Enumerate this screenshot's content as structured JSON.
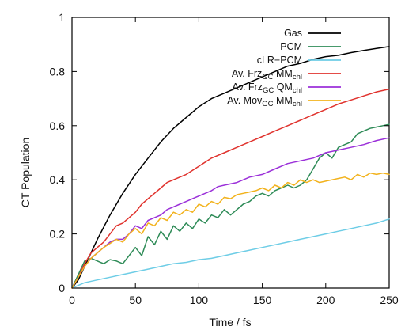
{
  "chart_data": {
    "type": "line",
    "title": "",
    "xlabel": "Time / fs",
    "ylabel": "CT Population",
    "xlim": [
      0,
      250
    ],
    "ylim": [
      0,
      1
    ],
    "xticks": [
      0,
      50,
      100,
      150,
      200,
      250
    ],
    "yticks": [
      0,
      0.2,
      0.4,
      0.6,
      0.8,
      1
    ],
    "ytick_labels": [
      "0",
      "0.2",
      "0.4",
      "0.6",
      "0.8",
      "1"
    ],
    "grid": false,
    "legend_position": "top-right",
    "series": [
      {
        "name": "Gas",
        "name_main": "Gas",
        "name_sub": "",
        "name_after": "",
        "name_sub2": "",
        "color": "#000000",
        "points": [
          [
            0,
            0
          ],
          [
            5,
            0.03
          ],
          [
            10,
            0.08
          ],
          [
            15,
            0.13
          ],
          [
            20,
            0.18
          ],
          [
            30,
            0.27
          ],
          [
            40,
            0.35
          ],
          [
            50,
            0.42
          ],
          [
            60,
            0.48
          ],
          [
            70,
            0.54
          ],
          [
            80,
            0.59
          ],
          [
            90,
            0.63
          ],
          [
            100,
            0.67
          ],
          [
            110,
            0.7
          ],
          [
            120,
            0.72
          ],
          [
            130,
            0.74
          ],
          [
            140,
            0.76
          ],
          [
            150,
            0.78
          ],
          [
            160,
            0.8
          ],
          [
            170,
            0.82
          ],
          [
            180,
            0.83
          ],
          [
            190,
            0.845
          ],
          [
            200,
            0.855
          ],
          [
            210,
            0.86
          ],
          [
            220,
            0.87
          ],
          [
            230,
            0.878
          ],
          [
            240,
            0.885
          ],
          [
            250,
            0.892
          ]
        ]
      },
      {
        "name": "PCM",
        "name_main": "PCM",
        "name_sub": "",
        "name_after": "",
        "name_sub2": "",
        "color": "#2e8b57",
        "points": [
          [
            0,
            0
          ],
          [
            5,
            0.05
          ],
          [
            10,
            0.1
          ],
          [
            15,
            0.11
          ],
          [
            20,
            0.1
          ],
          [
            25,
            0.09
          ],
          [
            30,
            0.105
          ],
          [
            35,
            0.1
          ],
          [
            40,
            0.09
          ],
          [
            45,
            0.12
          ],
          [
            50,
            0.15
          ],
          [
            55,
            0.12
          ],
          [
            60,
            0.19
          ],
          [
            65,
            0.16
          ],
          [
            70,
            0.21
          ],
          [
            75,
            0.18
          ],
          [
            80,
            0.23
          ],
          [
            85,
            0.21
          ],
          [
            90,
            0.24
          ],
          [
            95,
            0.22
          ],
          [
            100,
            0.255
          ],
          [
            105,
            0.24
          ],
          [
            110,
            0.27
          ],
          [
            115,
            0.26
          ],
          [
            120,
            0.29
          ],
          [
            125,
            0.27
          ],
          [
            130,
            0.29
          ],
          [
            135,
            0.31
          ],
          [
            140,
            0.32
          ],
          [
            145,
            0.34
          ],
          [
            150,
            0.35
          ],
          [
            155,
            0.34
          ],
          [
            160,
            0.36
          ],
          [
            165,
            0.37
          ],
          [
            170,
            0.38
          ],
          [
            175,
            0.37
          ],
          [
            180,
            0.38
          ],
          [
            185,
            0.4
          ],
          [
            190,
            0.44
          ],
          [
            195,
            0.48
          ],
          [
            200,
            0.5
          ],
          [
            205,
            0.48
          ],
          [
            210,
            0.52
          ],
          [
            215,
            0.53
          ],
          [
            220,
            0.54
          ],
          [
            225,
            0.57
          ],
          [
            230,
            0.58
          ],
          [
            235,
            0.59
          ],
          [
            240,
            0.595
          ],
          [
            245,
            0.6
          ],
          [
            250,
            0.605
          ]
        ]
      },
      {
        "name": "cLR-PCM",
        "name_main": "cLR−PCM",
        "name_sub": "",
        "name_after": "",
        "name_sub2": "",
        "color": "#6ecde6",
        "points": [
          [
            0,
            0
          ],
          [
            5,
            0.01
          ],
          [
            10,
            0.02
          ],
          [
            20,
            0.03
          ],
          [
            30,
            0.04
          ],
          [
            40,
            0.05
          ],
          [
            50,
            0.06
          ],
          [
            60,
            0.07
          ],
          [
            70,
            0.08
          ],
          [
            80,
            0.09
          ],
          [
            90,
            0.095
          ],
          [
            100,
            0.105
          ],
          [
            110,
            0.11
          ],
          [
            120,
            0.12
          ],
          [
            130,
            0.13
          ],
          [
            140,
            0.14
          ],
          [
            150,
            0.15
          ],
          [
            160,
            0.16
          ],
          [
            170,
            0.17
          ],
          [
            180,
            0.18
          ],
          [
            190,
            0.19
          ],
          [
            200,
            0.2
          ],
          [
            210,
            0.21
          ],
          [
            220,
            0.22
          ],
          [
            230,
            0.23
          ],
          [
            240,
            0.24
          ],
          [
            250,
            0.255
          ]
        ]
      },
      {
        "name": "Av. FrzGC MMchl",
        "name_main": "Av. Frz",
        "name_sub": "GC",
        "name_after": " MM",
        "name_sub2": "chl",
        "color": "#e0332e",
        "points": [
          [
            0,
            0
          ],
          [
            5,
            0.04
          ],
          [
            10,
            0.09
          ],
          [
            15,
            0.13
          ],
          [
            20,
            0.15
          ],
          [
            25,
            0.17
          ],
          [
            30,
            0.2
          ],
          [
            35,
            0.23
          ],
          [
            40,
            0.24
          ],
          [
            45,
            0.26
          ],
          [
            50,
            0.28
          ],
          [
            55,
            0.31
          ],
          [
            60,
            0.33
          ],
          [
            65,
            0.35
          ],
          [
            70,
            0.37
          ],
          [
            75,
            0.39
          ],
          [
            80,
            0.4
          ],
          [
            90,
            0.42
          ],
          [
            100,
            0.45
          ],
          [
            110,
            0.48
          ],
          [
            120,
            0.5
          ],
          [
            130,
            0.52
          ],
          [
            140,
            0.54
          ],
          [
            150,
            0.56
          ],
          [
            160,
            0.58
          ],
          [
            170,
            0.6
          ],
          [
            180,
            0.62
          ],
          [
            190,
            0.64
          ],
          [
            200,
            0.66
          ],
          [
            210,
            0.68
          ],
          [
            220,
            0.695
          ],
          [
            230,
            0.71
          ],
          [
            240,
            0.725
          ],
          [
            250,
            0.735
          ]
        ]
      },
      {
        "name": "Av. FrzGC QMchl",
        "name_main": "Av. Frz",
        "name_sub": "GC",
        "name_after": " QM",
        "name_sub2": "chl",
        "color": "#9b30d9",
        "points": [
          [
            0,
            0
          ],
          [
            5,
            0.04
          ],
          [
            10,
            0.08
          ],
          [
            15,
            0.11
          ],
          [
            20,
            0.13
          ],
          [
            25,
            0.15
          ],
          [
            30,
            0.17
          ],
          [
            35,
            0.18
          ],
          [
            40,
            0.18
          ],
          [
            45,
            0.2
          ],
          [
            50,
            0.23
          ],
          [
            55,
            0.22
          ],
          [
            60,
            0.25
          ],
          [
            65,
            0.26
          ],
          [
            70,
            0.27
          ],
          [
            75,
            0.29
          ],
          [
            80,
            0.3
          ],
          [
            85,
            0.31
          ],
          [
            90,
            0.32
          ],
          [
            95,
            0.33
          ],
          [
            100,
            0.34
          ],
          [
            105,
            0.35
          ],
          [
            110,
            0.36
          ],
          [
            115,
            0.375
          ],
          [
            120,
            0.38
          ],
          [
            130,
            0.39
          ],
          [
            140,
            0.41
          ],
          [
            150,
            0.42
          ],
          [
            160,
            0.44
          ],
          [
            170,
            0.46
          ],
          [
            180,
            0.47
          ],
          [
            190,
            0.48
          ],
          [
            200,
            0.5
          ],
          [
            210,
            0.51
          ],
          [
            220,
            0.52
          ],
          [
            230,
            0.53
          ],
          [
            240,
            0.545
          ],
          [
            250,
            0.555
          ]
        ]
      },
      {
        "name": "Av. MovGC MMchl",
        "name_main": "Av. Mov",
        "name_sub": "GC",
        "name_after": " MM",
        "name_sub2": "chl",
        "color": "#f2b21c",
        "points": [
          [
            0,
            0
          ],
          [
            5,
            0.04
          ],
          [
            10,
            0.08
          ],
          [
            15,
            0.11
          ],
          [
            20,
            0.13
          ],
          [
            25,
            0.15
          ],
          [
            30,
            0.165
          ],
          [
            35,
            0.18
          ],
          [
            40,
            0.17
          ],
          [
            45,
            0.2
          ],
          [
            50,
            0.22
          ],
          [
            55,
            0.2
          ],
          [
            60,
            0.24
          ],
          [
            65,
            0.23
          ],
          [
            70,
            0.26
          ],
          [
            75,
            0.25
          ],
          [
            80,
            0.28
          ],
          [
            85,
            0.27
          ],
          [
            90,
            0.29
          ],
          [
            95,
            0.28
          ],
          [
            100,
            0.31
          ],
          [
            105,
            0.3
          ],
          [
            110,
            0.32
          ],
          [
            115,
            0.31
          ],
          [
            120,
            0.335
          ],
          [
            125,
            0.33
          ],
          [
            130,
            0.345
          ],
          [
            135,
            0.35
          ],
          [
            140,
            0.355
          ],
          [
            145,
            0.36
          ],
          [
            150,
            0.37
          ],
          [
            155,
            0.36
          ],
          [
            160,
            0.38
          ],
          [
            165,
            0.37
          ],
          [
            170,
            0.39
          ],
          [
            175,
            0.38
          ],
          [
            180,
            0.4
          ],
          [
            185,
            0.39
          ],
          [
            190,
            0.4
          ],
          [
            195,
            0.39
          ],
          [
            200,
            0.395
          ],
          [
            205,
            0.4
          ],
          [
            210,
            0.405
          ],
          [
            215,
            0.41
          ],
          [
            220,
            0.4
          ],
          [
            225,
            0.42
          ],
          [
            230,
            0.41
          ],
          [
            235,
            0.425
          ],
          [
            240,
            0.42
          ],
          [
            245,
            0.425
          ],
          [
            250,
            0.42
          ]
        ]
      }
    ]
  }
}
